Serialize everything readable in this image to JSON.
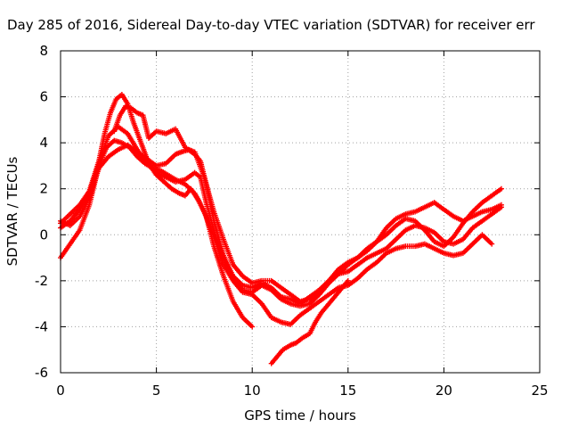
{
  "chart_data": {
    "type": "scatter",
    "title": "Day 285 of 2016, Sidereal Day-to-day VTEC variation (SDTVAR) for receiver err",
    "xlabel": "GPS time / hours",
    "ylabel": "SDTVAR / TECUs",
    "xlim": [
      0,
      25
    ],
    "ylim": [
      -6,
      8
    ],
    "xticks": [
      "0",
      "5",
      "10",
      "15",
      "20",
      "25"
    ],
    "yticks": [
      "-6",
      "-4",
      "-2",
      "0",
      "2",
      "4",
      "6",
      "8"
    ],
    "grid": true,
    "marker": "plus",
    "color": "#ff0000",
    "series": [
      {
        "x": [
          0.0,
          0.5,
          1.0,
          1.5,
          2.0,
          2.3,
          2.6,
          2.9,
          3.2,
          3.5,
          3.8,
          4.2,
          4.6,
          5.0,
          5.4,
          5.8,
          6.2,
          6.5,
          6.8,
          7.2,
          7.6,
          8.0,
          8.5,
          9.0,
          9.5,
          10.0
        ],
        "y": [
          0.5,
          0.9,
          1.3,
          1.9,
          3.2,
          4.4,
          5.3,
          5.9,
          6.1,
          5.7,
          4.9,
          4.0,
          3.1,
          2.6,
          2.3,
          2.0,
          1.8,
          1.7,
          2.0,
          1.5,
          0.8,
          -0.5,
          -1.8,
          -2.9,
          -3.6,
          -4.0
        ]
      },
      {
        "x": [
          0.0,
          0.5,
          1.0,
          1.5,
          2.0,
          2.5,
          3.0,
          3.5,
          4.0,
          4.5,
          5.0,
          5.5,
          6.0,
          6.5,
          7.0,
          7.3,
          7.6,
          8.0,
          8.5,
          9.0,
          9.5,
          10.0,
          10.5,
          11.0,
          11.5,
          12.0,
          12.5,
          13.0,
          13.5,
          14.0,
          14.5,
          15.0,
          15.5,
          16.0,
          16.5,
          17.0,
          17.5,
          18.0,
          18.5,
          19.0,
          19.5,
          20.0,
          20.5,
          21.0,
          21.5,
          22.0,
          22.5,
          23.0
        ],
        "y": [
          0.3,
          0.6,
          1.1,
          1.8,
          3.2,
          4.3,
          4.7,
          4.4,
          3.7,
          3.1,
          2.7,
          2.5,
          2.3,
          2.4,
          2.7,
          2.5,
          1.4,
          0.2,
          -1.0,
          -1.9,
          -2.4,
          -2.5,
          -2.2,
          -2.4,
          -2.8,
          -3.0,
          -3.1,
          -3.0,
          -2.6,
          -2.1,
          -1.7,
          -1.6,
          -1.3,
          -1.0,
          -0.8,
          -0.6,
          -0.2,
          0.2,
          0.4,
          0.3,
          0.1,
          -0.3,
          -0.4,
          -0.2,
          0.3,
          0.6,
          0.9,
          1.2
        ]
      },
      {
        "x": [
          0.0,
          0.5,
          1.0,
          1.5,
          2.0,
          2.5,
          3.0,
          3.5,
          4.0,
          4.5,
          5.0,
          5.5,
          6.0,
          6.3,
          6.7,
          7.0,
          7.5,
          8.0,
          8.5,
          9.0,
          9.5,
          10.0,
          10.5,
          11.0,
          11.5,
          12.0,
          12.5,
          13.0,
          13.5,
          14.0,
          14.5,
          15.0,
          15.5,
          16.0,
          16.5,
          17.0,
          17.5,
          18.0,
          18.5,
          19.0,
          19.5,
          20.0,
          20.5,
          21.0,
          21.5,
          22.0,
          22.5,
          23.0
        ],
        "y": [
          0.6,
          0.4,
          0.8,
          1.6,
          2.9,
          3.4,
          3.7,
          3.9,
          3.6,
          3.3,
          3.0,
          3.1,
          3.5,
          3.6,
          3.7,
          3.6,
          2.5,
          1.0,
          -0.2,
          -1.3,
          -1.8,
          -2.1,
          -2.0,
          -2.0,
          -2.3,
          -2.6,
          -2.9,
          -2.8,
          -2.5,
          -2.0,
          -1.5,
          -1.2,
          -1.0,
          -0.7,
          -0.3,
          0.3,
          0.7,
          0.9,
          1.0,
          1.2,
          1.4,
          1.1,
          0.8,
          0.6,
          0.8,
          1.0,
          1.1,
          1.3
        ]
      },
      {
        "x": [
          0.0,
          0.5,
          1.0,
          1.5,
          2.0,
          2.4,
          2.8,
          3.2,
          3.6,
          4.0,
          4.4,
          4.8,
          5.2,
          5.6,
          6.0,
          6.5,
          7.0,
          7.5,
          8.0,
          8.5,
          9.0,
          9.5,
          10.0,
          10.5,
          11.0,
          11.5,
          12.0,
          12.5,
          13.0,
          13.5,
          14.0,
          14.5,
          15.0,
          15.5,
          16.0,
          16.5,
          17.0,
          17.5,
          18.0,
          18.5,
          19.0,
          19.5,
          20.0,
          20.5,
          21.0,
          21.5,
          22.0,
          22.5
        ],
        "y": [
          -1.0,
          -0.4,
          0.2,
          1.3,
          3.0,
          3.8,
          4.1,
          4.0,
          3.8,
          3.4,
          3.1,
          2.9,
          2.8,
          2.6,
          2.4,
          2.2,
          1.8,
          1.0,
          -0.1,
          -1.3,
          -2.0,
          -2.5,
          -2.6,
          -3.0,
          -3.6,
          -3.8,
          -3.9,
          -3.5,
          -3.2,
          -2.9,
          -2.6,
          -2.3,
          -2.2,
          -1.9,
          -1.5,
          -1.2,
          -0.8,
          -0.6,
          -0.5,
          -0.5,
          -0.4,
          -0.6,
          -0.8,
          -0.9,
          -0.8,
          -0.4,
          0.0,
          -0.4
        ]
      },
      {
        "x": [
          2.8,
          3.1,
          3.4,
          3.7,
          4.0,
          4.3,
          4.6,
          5.0,
          5.5,
          6.0,
          6.5,
          7.0,
          7.3,
          7.6,
          8.0,
          8.5,
          9.0,
          9.5,
          10.0,
          10.5,
          11.0,
          11.5,
          12.0,
          12.5,
          13.0,
          13.5,
          14.0,
          14.5,
          15.0,
          15.5,
          16.0,
          16.5,
          17.0,
          17.5,
          18.0,
          18.5,
          19.0,
          19.5,
          20.0,
          20.5,
          21.0,
          21.5,
          22.0,
          22.5,
          23.0
        ],
        "y": [
          4.5,
          5.2,
          5.6,
          5.5,
          5.3,
          5.2,
          4.2,
          4.5,
          4.4,
          4.6,
          3.8,
          3.5,
          3.2,
          2.2,
          0.6,
          -0.9,
          -1.8,
          -2.2,
          -2.3,
          -2.1,
          -2.3,
          -2.7,
          -2.8,
          -3.0,
          -2.7,
          -2.4,
          -2.0,
          -1.7,
          -1.3,
          -1.0,
          -0.6,
          -0.3,
          0.0,
          0.4,
          0.7,
          0.6,
          0.2,
          -0.3,
          -0.5,
          -0.1,
          0.5,
          1.0,
          1.4,
          1.7,
          2.0
        ]
      },
      {
        "x": [
          11.0,
          11.3,
          11.6,
          12.0,
          12.3,
          12.6,
          13.0,
          13.3,
          13.6,
          14.0,
          14.3,
          14.6,
          15.0
        ],
        "y": [
          -5.6,
          -5.3,
          -5.0,
          -4.8,
          -4.7,
          -4.5,
          -4.3,
          -3.8,
          -3.4,
          -3.0,
          -2.7,
          -2.4,
          -2.0
        ]
      }
    ]
  }
}
